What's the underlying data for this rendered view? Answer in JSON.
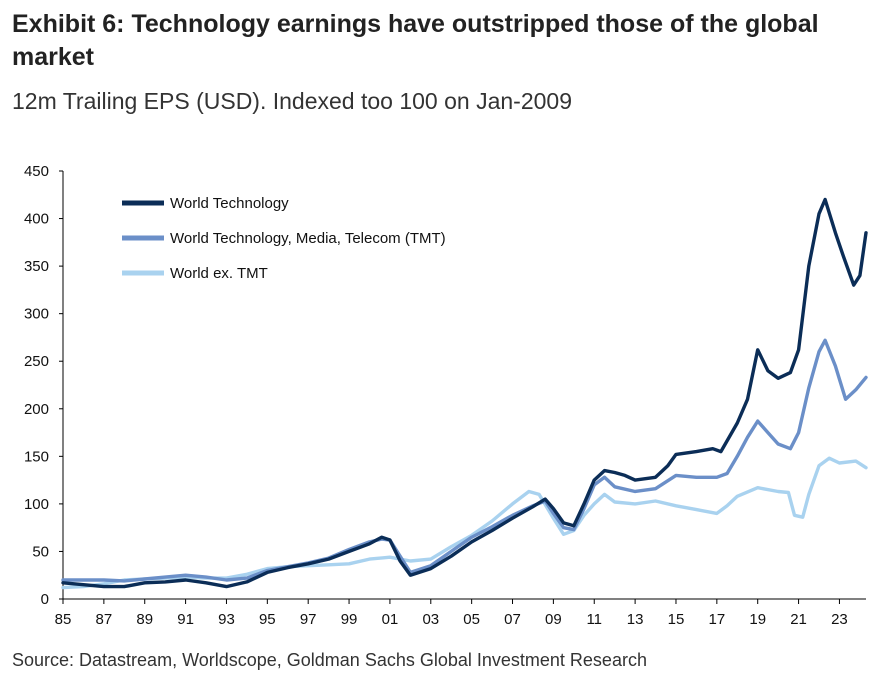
{
  "header": {
    "title": "Exhibit 6: Technology earnings have outstripped those of the global market",
    "subtitle": "12m Trailing EPS (USD). Indexed too 100 on Jan-2009"
  },
  "footer": {
    "source": "Source: Datastream, Worldscope, Goldman Sachs Global Investment Research"
  },
  "chart_data": {
    "type": "line",
    "title": "",
    "xlabel": "",
    "ylabel": "",
    "xlim": [
      1985,
      2024.3
    ],
    "ylim": [
      0,
      450
    ],
    "y_ticks": [
      0,
      50,
      100,
      150,
      200,
      250,
      300,
      350,
      400,
      450
    ],
    "x_tick_labels": [
      "85",
      "87",
      "89",
      "91",
      "93",
      "95",
      "97",
      "99",
      "01",
      "03",
      "05",
      "07",
      "09",
      "11",
      "13",
      "15",
      "17",
      "19",
      "21",
      "23"
    ],
    "grid": false,
    "legend_position": "top-left",
    "series": [
      {
        "name": "World Technology",
        "color": "#0b2d57",
        "points": [
          [
            1985.0,
            17
          ],
          [
            1986.0,
            15
          ],
          [
            1987.0,
            13
          ],
          [
            1988.0,
            13
          ],
          [
            1989.0,
            17
          ],
          [
            1990.0,
            18
          ],
          [
            1991.0,
            20
          ],
          [
            1992.0,
            17
          ],
          [
            1993.0,
            13
          ],
          [
            1994.0,
            18
          ],
          [
            1995.0,
            28
          ],
          [
            1996.0,
            33
          ],
          [
            1997.0,
            37
          ],
          [
            1998.0,
            42
          ],
          [
            1999.0,
            50
          ],
          [
            2000.0,
            58
          ],
          [
            2000.6,
            65
          ],
          [
            2001.0,
            62
          ],
          [
            2001.5,
            40
          ],
          [
            2002.0,
            25
          ],
          [
            2003.0,
            32
          ],
          [
            2004.0,
            45
          ],
          [
            2005.0,
            60
          ],
          [
            2006.0,
            72
          ],
          [
            2007.0,
            85
          ],
          [
            2008.0,
            97
          ],
          [
            2008.6,
            105
          ],
          [
            2009.0,
            95
          ],
          [
            2009.5,
            80
          ],
          [
            2010.0,
            77
          ],
          [
            2010.5,
            100
          ],
          [
            2011.0,
            125
          ],
          [
            2011.5,
            135
          ],
          [
            2012.0,
            133
          ],
          [
            2012.5,
            130
          ],
          [
            2013.0,
            125
          ],
          [
            2014.0,
            128
          ],
          [
            2014.6,
            140
          ],
          [
            2015.0,
            152
          ],
          [
            2016.0,
            155
          ],
          [
            2016.8,
            158
          ],
          [
            2017.2,
            155
          ],
          [
            2018.0,
            185
          ],
          [
            2018.5,
            210
          ],
          [
            2019.0,
            262
          ],
          [
            2019.5,
            240
          ],
          [
            2020.0,
            232
          ],
          [
            2020.6,
            238
          ],
          [
            2021.0,
            262
          ],
          [
            2021.5,
            350
          ],
          [
            2022.0,
            405
          ],
          [
            2022.3,
            420
          ],
          [
            2022.8,
            385
          ],
          [
            2023.2,
            360
          ],
          [
            2023.7,
            330
          ],
          [
            2024.0,
            340
          ],
          [
            2024.3,
            385
          ]
        ]
      },
      {
        "name": "World Technology, Media, Telecom (TMT)",
        "color": "#6b8fc8",
        "points": [
          [
            1985.0,
            20
          ],
          [
            1986.0,
            20
          ],
          [
            1987.0,
            20
          ],
          [
            1988.0,
            19
          ],
          [
            1989.0,
            21
          ],
          [
            1990.0,
            23
          ],
          [
            1991.0,
            25
          ],
          [
            1992.0,
            23
          ],
          [
            1993.0,
            20
          ],
          [
            1994.0,
            22
          ],
          [
            1995.0,
            30
          ],
          [
            1996.0,
            34
          ],
          [
            1997.0,
            38
          ],
          [
            1998.0,
            43
          ],
          [
            1999.0,
            52
          ],
          [
            2000.0,
            60
          ],
          [
            2000.6,
            63
          ],
          [
            2001.0,
            62
          ],
          [
            2001.5,
            45
          ],
          [
            2002.0,
            28
          ],
          [
            2003.0,
            35
          ],
          [
            2004.0,
            50
          ],
          [
            2005.0,
            65
          ],
          [
            2006.0,
            76
          ],
          [
            2007.0,
            88
          ],
          [
            2008.0,
            98
          ],
          [
            2008.6,
            103
          ],
          [
            2009.0,
            90
          ],
          [
            2009.5,
            75
          ],
          [
            2010.0,
            73
          ],
          [
            2010.5,
            95
          ],
          [
            2011.0,
            120
          ],
          [
            2011.5,
            128
          ],
          [
            2012.0,
            118
          ],
          [
            2013.0,
            113
          ],
          [
            2014.0,
            116
          ],
          [
            2015.0,
            130
          ],
          [
            2016.0,
            128
          ],
          [
            2017.0,
            128
          ],
          [
            2017.5,
            132
          ],
          [
            2018.0,
            150
          ],
          [
            2018.5,
            170
          ],
          [
            2019.0,
            187
          ],
          [
            2019.5,
            175
          ],
          [
            2020.0,
            163
          ],
          [
            2020.6,
            158
          ],
          [
            2021.0,
            175
          ],
          [
            2021.5,
            222
          ],
          [
            2022.0,
            260
          ],
          [
            2022.3,
            272
          ],
          [
            2022.8,
            245
          ],
          [
            2023.3,
            210
          ],
          [
            2023.8,
            220
          ],
          [
            2024.3,
            233
          ]
        ]
      },
      {
        "name": "World ex. TMT",
        "color": "#a9d2ef",
        "points": [
          [
            1985.0,
            12
          ],
          [
            1986.0,
            13
          ],
          [
            1987.0,
            16
          ],
          [
            1988.0,
            20
          ],
          [
            1989.0,
            21
          ],
          [
            1990.0,
            22
          ],
          [
            1991.0,
            23
          ],
          [
            1992.0,
            22
          ],
          [
            1993.0,
            22
          ],
          [
            1994.0,
            26
          ],
          [
            1995.0,
            32
          ],
          [
            1996.0,
            34
          ],
          [
            1997.0,
            35
          ],
          [
            1998.0,
            36
          ],
          [
            1999.0,
            37
          ],
          [
            2000.0,
            42
          ],
          [
            2001.0,
            44
          ],
          [
            2002.0,
            40
          ],
          [
            2003.0,
            42
          ],
          [
            2004.0,
            55
          ],
          [
            2005.0,
            67
          ],
          [
            2006.0,
            82
          ],
          [
            2007.0,
            100
          ],
          [
            2007.8,
            113
          ],
          [
            2008.3,
            110
          ],
          [
            2009.0,
            85
          ],
          [
            2009.5,
            68
          ],
          [
            2010.0,
            72
          ],
          [
            2010.5,
            88
          ],
          [
            2011.0,
            100
          ],
          [
            2011.5,
            110
          ],
          [
            2012.0,
            102
          ],
          [
            2013.0,
            100
          ],
          [
            2014.0,
            103
          ],
          [
            2015.0,
            98
          ],
          [
            2016.0,
            94
          ],
          [
            2017.0,
            90
          ],
          [
            2017.5,
            98
          ],
          [
            2018.0,
            108
          ],
          [
            2019.0,
            117
          ],
          [
            2020.0,
            113
          ],
          [
            2020.5,
            112
          ],
          [
            2020.8,
            88
          ],
          [
            2021.2,
            86
          ],
          [
            2021.5,
            110
          ],
          [
            2022.0,
            140
          ],
          [
            2022.5,
            148
          ],
          [
            2023.0,
            143
          ],
          [
            2023.8,
            145
          ],
          [
            2024.3,
            138
          ]
        ]
      }
    ]
  }
}
